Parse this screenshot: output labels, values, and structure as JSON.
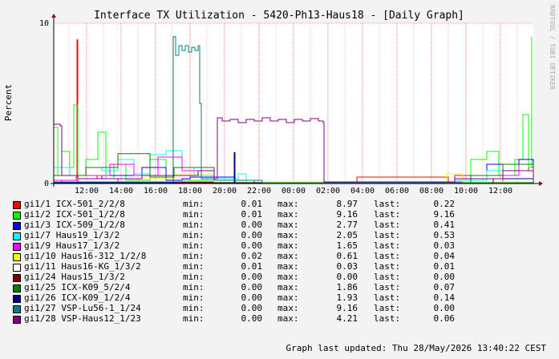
{
  "chart_data": {
    "type": "line",
    "title": "Interface TX Utilization - 5420-Ph13-Haus18 - [Daily Graph]",
    "ylabel": "Percent",
    "xlabel": "",
    "ylim": [
      0,
      10
    ],
    "y_ticks": [
      "0",
      "10"
    ],
    "x_ticks": [
      "12:00",
      "14:00",
      "16:00",
      "18:00",
      "20:00",
      "22:00",
      "00:00",
      "02:00",
      "04:00",
      "06:00",
      "08:00",
      "10:00",
      "12:00"
    ],
    "grid": true,
    "watermark": "RRDTOOL / TOBI OETIKER",
    "legend_labels": {
      "min": "min:",
      "max": "max:",
      "last": "last:"
    },
    "series": [
      {
        "name": "gi1/1 ICX-501_2/2/8",
        "color": "#ff0000",
        "min": "0.01",
        "max": "8.97",
        "last": "0.22",
        "points": [
          [
            0,
            0.05
          ],
          [
            10,
            0.2
          ],
          [
            28,
            0.4
          ],
          [
            29,
            8.97
          ],
          [
            30,
            0.3
          ],
          [
            45,
            0.3
          ],
          [
            54,
            0.5
          ],
          [
            60,
            0.3
          ],
          [
            80,
            0.05
          ],
          [
            96,
            0.05
          ],
          [
            136,
            0.1
          ],
          [
            212,
            0.1
          ],
          [
            226,
            0.05
          ],
          [
            320,
            0.05
          ],
          [
            372,
            0.1
          ],
          [
            378,
            0.4
          ],
          [
            492,
            0.1
          ],
          [
            500,
            0.5
          ],
          [
            540,
            0.3
          ],
          [
            560,
            0.8
          ],
          [
            592,
            1.0
          ],
          [
            598,
            0.22
          ]
        ]
      },
      {
        "name": "gi1/2 ICX-501_1/2/8",
        "color": "#00ff00",
        "min": "0.01",
        "max": "9.16",
        "last": "9.16",
        "points": [
          [
            0,
            3.5
          ],
          [
            5,
            0.5
          ],
          [
            10,
            2.0
          ],
          [
            20,
            1.0
          ],
          [
            25,
            4.9
          ],
          [
            30,
            0.5
          ],
          [
            40,
            1.5
          ],
          [
            55,
            3.2
          ],
          [
            65,
            0.3
          ],
          [
            75,
            1.2
          ],
          [
            90,
            0.2
          ],
          [
            110,
            0.2
          ],
          [
            120,
            1.5
          ],
          [
            140,
            0.2
          ],
          [
            200,
            0.1
          ],
          [
            230,
            0.1
          ],
          [
            300,
            0.1
          ],
          [
            400,
            0.05
          ],
          [
            500,
            0.3
          ],
          [
            520,
            1.5
          ],
          [
            540,
            2.0
          ],
          [
            555,
            0.5
          ],
          [
            575,
            1.5
          ],
          [
            585,
            4.3
          ],
          [
            592,
            1.0
          ],
          [
            596,
            9.16
          ]
        ]
      },
      {
        "name": "gi1/3 ICX-509_1/2/8",
        "color": "#0000ff",
        "min": "0.00",
        "max": "2.77",
        "last": "0.41",
        "points": [
          [
            0,
            0.1
          ],
          [
            30,
            0.3
          ],
          [
            60,
            0.5
          ],
          [
            110,
            1.0
          ],
          [
            140,
            0.2
          ],
          [
            160,
            0.3
          ],
          [
            170,
            0.4
          ],
          [
            225,
            0.1
          ],
          [
            340,
            0.05
          ],
          [
            520,
            0.3
          ],
          [
            540,
            1.2
          ],
          [
            560,
            0.8
          ],
          [
            580,
            1.5
          ],
          [
            598,
            0.41
          ]
        ]
      },
      {
        "name": "gi1/7 Haus19_1/3/2",
        "color": "#00ffff",
        "min": "0.00",
        "max": "2.05",
        "last": "0.53",
        "points": [
          [
            0,
            1.0
          ],
          [
            20,
            0.5
          ],
          [
            40,
            1.0
          ],
          [
            60,
            0.8
          ],
          [
            80,
            1.5
          ],
          [
            100,
            0.6
          ],
          [
            120,
            1.8
          ],
          [
            140,
            2.05
          ],
          [
            160,
            1.0
          ],
          [
            175,
            0.5
          ],
          [
            200,
            0.3
          ],
          [
            230,
            0.6
          ],
          [
            240,
            0.1
          ],
          [
            300,
            0.05
          ],
          [
            500,
            0.2
          ],
          [
            540,
            0.8
          ],
          [
            560,
            1.2
          ],
          [
            598,
            0.53
          ]
        ]
      },
      {
        "name": "gi1/9 Haus17_1/3/2",
        "color": "#ff00ff",
        "min": "0.00",
        "max": "1.65",
        "last": "0.03",
        "points": [
          [
            0,
            0.2
          ],
          [
            30,
            0.5
          ],
          [
            70,
            1.2
          ],
          [
            100,
            0.5
          ],
          [
            130,
            1.65
          ],
          [
            160,
            0.8
          ],
          [
            200,
            0.2
          ],
          [
            260,
            0.05
          ],
          [
            500,
            0.1
          ],
          [
            560,
            0.5
          ],
          [
            580,
            1.2
          ],
          [
            598,
            0.03
          ]
        ]
      },
      {
        "name": "gi1/10 Haus16-312_1/2/8",
        "color": "#ffff00",
        "min": "0.02",
        "max": "0.61",
        "last": "0.04",
        "points": [
          [
            0,
            0.1
          ],
          [
            100,
            0.3
          ],
          [
            150,
            0.6
          ],
          [
            200,
            0.1
          ],
          [
            400,
            0.05
          ],
          [
            490,
            0.61
          ],
          [
            510,
            0.1
          ],
          [
            598,
            0.04
          ]
        ]
      },
      {
        "name": "gi1/11 Haus16-KG_1/3/2",
        "color": "#ffffff",
        "min": "0.01",
        "max": "0.03",
        "last": "0.01",
        "points": [
          [
            0,
            0.02
          ],
          [
            300,
            0.03
          ],
          [
            598,
            0.01
          ]
        ]
      },
      {
        "name": "gi1/24 Haus15_1/3/2",
        "color": "#800000",
        "min": "0.00",
        "max": "0.00",
        "last": "0.00",
        "points": [
          [
            0,
            0.0
          ],
          [
            598,
            0.0
          ]
        ]
      },
      {
        "name": "gi1/25 ICX-K09_5/2/4",
        "color": "#008000",
        "min": "0.00",
        "max": "1.86",
        "last": "0.07",
        "points": [
          [
            0,
            0.5
          ],
          [
            40,
            1.0
          ],
          [
            80,
            1.86
          ],
          [
            120,
            0.4
          ],
          [
            150,
            1.0
          ],
          [
            200,
            0.2
          ],
          [
            250,
            0.05
          ],
          [
            520,
            0.5
          ],
          [
            560,
            1.2
          ],
          [
            598,
            0.07
          ]
        ]
      },
      {
        "name": "gi1/26 ICX-K09_1/2/4",
        "color": "#000080",
        "min": "0.00",
        "max": "1.93",
        "last": "0.14",
        "points": [
          [
            0,
            0.05
          ],
          [
            224,
            0.05
          ],
          [
            225,
            1.93
          ],
          [
            226,
            0.05
          ],
          [
            500,
            0.05
          ],
          [
            548,
            0.3
          ],
          [
            598,
            0.14
          ]
        ]
      },
      {
        "name": "gi1/27 VSP-Lu56-1_1/24",
        "color": "#008080",
        "min": "0.00",
        "max": "9.16",
        "last": "0.00",
        "points": [
          [
            0,
            0.1
          ],
          [
            145,
            0.1
          ],
          [
            149,
            9.16
          ],
          [
            152,
            8.0
          ],
          [
            156,
            8.6
          ],
          [
            160,
            8.3
          ],
          [
            164,
            8.6
          ],
          [
            168,
            8.2
          ],
          [
            172,
            8.5
          ],
          [
            176,
            8.3
          ],
          [
            180,
            8.6
          ],
          [
            182,
            5.0
          ],
          [
            184,
            0.3
          ],
          [
            200,
            0.2
          ],
          [
            260,
            0.05
          ],
          [
            598,
            0.0
          ]
        ]
      },
      {
        "name": "gi1/28 VSP-Haus12_1/23",
        "color": "#800080",
        "min": "0.00",
        "max": "4.21",
        "last": "0.06",
        "points": [
          [
            0,
            3.7
          ],
          [
            8,
            3.6
          ],
          [
            10,
            0.5
          ],
          [
            30,
            0.3
          ],
          [
            80,
            0.3
          ],
          [
            110,
            0.5
          ],
          [
            180,
            0.8
          ],
          [
            200,
            0.3
          ],
          [
            204,
            4.1
          ],
          [
            210,
            3.9
          ],
          [
            220,
            4.0
          ],
          [
            230,
            3.8
          ],
          [
            240,
            4.0
          ],
          [
            250,
            3.9
          ],
          [
            260,
            4.1
          ],
          [
            270,
            3.9
          ],
          [
            280,
            4.0
          ],
          [
            290,
            3.8
          ],
          [
            300,
            4.0
          ],
          [
            310,
            3.9
          ],
          [
            320,
            4.05
          ],
          [
            330,
            3.9
          ],
          [
            336,
            3.8
          ],
          [
            337,
            0.1
          ],
          [
            400,
            0.1
          ],
          [
            500,
            0.3
          ],
          [
            560,
            0.8
          ],
          [
            598,
            0.06
          ]
        ]
      }
    ]
  },
  "footer": {
    "updated": "Graph last updated: Thu 28/May/2026 13:40:22 CEST"
  }
}
